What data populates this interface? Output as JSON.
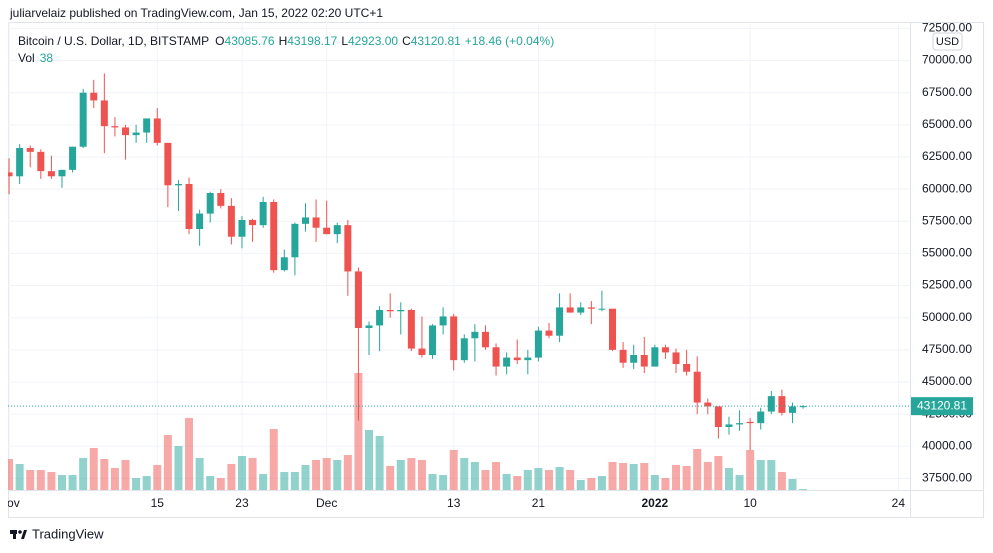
{
  "published": "juliarvelaiz published on TradingView.com, Jan 15, 2022 02:20 UTC+1",
  "brand": "TradingView",
  "chart_data": {
    "type": "candlestick",
    "title": "Bitcoin / U.S. Dollar, 1D, BITSTAMP",
    "legend_ohlc": [
      {
        "label": "O",
        "value": "43085.76"
      },
      {
        "label": "H",
        "value": "43198.17"
      },
      {
        "label": "L",
        "value": "42923.00"
      },
      {
        "label": "C",
        "value": "43120.81"
      }
    ],
    "change": "+18.46 (+0.04%)",
    "volume_label": "Vol",
    "currency": "USD",
    "up_color": "#26a69a",
    "down_color": "#ef5350",
    "grid": true,
    "open": [
      61300,
      61000,
      63200,
      62900,
      61400,
      61000,
      61500,
      63300,
      67500,
      66900,
      64900,
      64800,
      64200,
      64400,
      65500,
      63600,
      60300,
      60400,
      56900,
      58100,
      59700,
      58700,
      56300,
      57600,
      57200,
      59000,
      53700,
      54700,
      57300,
      57800,
      57000,
      56500,
      57200,
      53600,
      49200,
      49400,
      50600,
      50500,
      50600,
      47600,
      47100,
      49400,
      50100,
      46700,
      48400,
      48900,
      47700,
      46200,
      46900,
      46700,
      46900,
      49000,
      48600,
      50800,
      50400,
      50800,
      50700,
      50700,
      47500,
      46500,
      47100,
      46200,
      47700,
      47300,
      46400,
      45800,
      43400,
      43100,
      41500,
      41700,
      41900,
      41800,
      42700,
      43900,
      42600,
      43085.76
    ],
    "high": [
      62400,
      63500,
      63400,
      63100,
      62600,
      61500,
      63300,
      67800,
      68500,
      69000,
      65600,
      65000,
      65000,
      65500,
      66300,
      63600,
      60700,
      60900,
      58400,
      59800,
      60000,
      59300,
      57900,
      57700,
      59400,
      59200,
      55300,
      57400,
      58900,
      59200,
      59100,
      57400,
      57600,
      53900,
      49700,
      50900,
      51900,
      51200,
      50700,
      50100,
      49500,
      50800,
      50300,
      48700,
      49500,
      49400,
      48000,
      47300,
      48300,
      47500,
      49300,
      49600,
      51900,
      51900,
      51200,
      51300,
      52100,
      50700,
      48100,
      47900,
      48500,
      47900,
      47900,
      47600,
      47500,
      47000,
      43700,
      43100,
      42300,
      42800,
      42200,
      43000,
      44300,
      44400,
      43400,
      43198.17
    ],
    "low": [
      59600,
      60400,
      61700,
      60800,
      60800,
      60100,
      61300,
      63200,
      66300,
      62800,
      64100,
      62300,
      63600,
      63600,
      63400,
      58600,
      58300,
      56500,
      55600,
      57400,
      58500,
      55700,
      55400,
      55900,
      57000,
      53500,
      53600,
      53300,
      56700,
      55900,
      56500,
      55800,
      51700,
      42000,
      47100,
      47400,
      50000,
      48700,
      47400,
      46900,
      46800,
      48700,
      45900,
      46500,
      46600,
      47500,
      45500,
      45600,
      46400,
      45600,
      46600,
      48400,
      48100,
      50400,
      50200,
      49500,
      50500,
      47400,
      46100,
      46000,
      45700,
      46200,
      46800,
      45700,
      45500,
      42500,
      42500,
      40600,
      40900,
      41200,
      39700,
      41300,
      42500,
      42400,
      41800,
      42923
    ],
    "close": [
      61000,
      63200,
      62900,
      61400,
      61000,
      61500,
      63300,
      67500,
      66900,
      64900,
      64800,
      64200,
      64400,
      65500,
      63600,
      60300,
      60400,
      56900,
      58100,
      59700,
      58700,
      56300,
      57600,
      57200,
      59000,
      53700,
      54700,
      57300,
      57800,
      57000,
      56500,
      57200,
      53600,
      49200,
      49400,
      50600,
      50500,
      50600,
      47600,
      47100,
      49400,
      50100,
      46700,
      48400,
      48900,
      47700,
      46200,
      46900,
      46700,
      46900,
      49000,
      48600,
      50800,
      50400,
      50800,
      50700,
      50700,
      47500,
      46500,
      47100,
      46200,
      47700,
      47300,
      46400,
      45800,
      43400,
      43100,
      41500,
      41700,
      41800,
      41800,
      42700,
      43900,
      42600,
      43100,
      43120.81
    ],
    "volume": [
      1240,
      1040,
      800,
      800,
      720,
      600,
      600,
      1280,
      1680,
      1240,
      880,
      1200,
      480,
      560,
      1000,
      2200,
      1760,
      2880,
      1280,
      560,
      480,
      1040,
      1360,
      1280,
      640,
      2440,
      720,
      720,
      1000,
      1200,
      1280,
      1200,
      1400,
      4680,
      2400,
      2160,
      960,
      1200,
      1280,
      1200,
      640,
      600,
      1600,
      1280,
      1120,
      800,
      1120,
      640,
      560,
      800,
      880,
      800,
      920,
      800,
      400,
      480,
      560,
      1120,
      1080,
      1040,
      1080,
      600,
      480,
      1000,
      960,
      1640,
      1120,
      1360,
      880,
      600,
      1600,
      1200,
      1200,
      720,
      440,
      38
    ],
    "vol_ylim": [
      0,
      6000
    ],
    "xlim": [
      -0.1,
      85.1
    ],
    "xticks": [
      {
        "value": 0,
        "label": "Nov"
      },
      {
        "value": 14,
        "label": "15"
      },
      {
        "value": 22,
        "label": "23"
      },
      {
        "value": 30,
        "label": "Dec"
      },
      {
        "value": 42,
        "label": "13"
      },
      {
        "value": 50,
        "label": "21"
      },
      {
        "value": 61,
        "label": "2022"
      },
      {
        "value": 70,
        "label": "10"
      },
      {
        "value": 84,
        "label": "24"
      }
    ],
    "ylim": [
      36600,
      73000
    ],
    "yticks": [
      {
        "value": 37500,
        "label": "37500.00"
      },
      {
        "value": 40000,
        "label": "40000.00"
      },
      {
        "value": 42500,
        "label": "42500.00"
      },
      {
        "value": 45000,
        "label": "45000.00"
      },
      {
        "value": 47500,
        "label": "47500.00"
      },
      {
        "value": 50000,
        "label": "50000.00"
      },
      {
        "value": 52500,
        "label": "52500.00"
      },
      {
        "value": 55000,
        "label": "55000.00"
      },
      {
        "value": 57500,
        "label": "57500.00"
      },
      {
        "value": 60000,
        "label": "60000.00"
      },
      {
        "value": 62500,
        "label": "62500.00"
      },
      {
        "value": 65000,
        "label": "65000.00"
      },
      {
        "value": 67500,
        "label": "67500.00"
      },
      {
        "value": 70000,
        "label": "70000.00"
      },
      {
        "value": 72500,
        "label": "72500.00"
      }
    ]
  }
}
